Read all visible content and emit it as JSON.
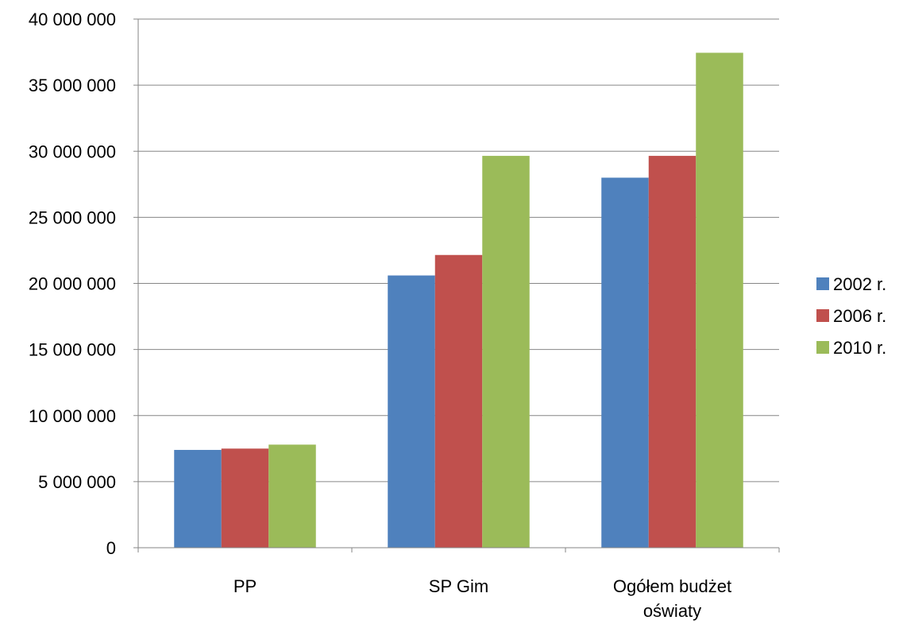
{
  "chart_data": {
    "type": "bar",
    "categories": [
      "PP",
      "SP Gim",
      "Ogółem budżet oświaty"
    ],
    "category_lines": [
      [
        "PP"
      ],
      [
        "SP Gim"
      ],
      [
        "Ogółem budżet",
        "oświaty"
      ]
    ],
    "series": [
      {
        "name": "2002 r.",
        "color": "#4F81BD",
        "values": [
          7400000,
          20600000,
          28000000
        ]
      },
      {
        "name": "2006 r.",
        "color": "#C0504D",
        "values": [
          7500000,
          22150000,
          29650000
        ]
      },
      {
        "name": "2010 r.",
        "color": "#9BBB59",
        "values": [
          7800000,
          29650000,
          37450000
        ]
      }
    ],
    "ylim": [
      0,
      40000000
    ],
    "ytick_step": 5000000,
    "ytick_labels": [
      "0",
      "5 000 000",
      "10 000 000",
      "15 000 000",
      "20 000 000",
      "25 000 000",
      "30 000 000",
      "35 000 000",
      "40 000 000"
    ],
    "grid": true,
    "legend_position": "right",
    "title": "",
    "xlabel": "",
    "ylabel": ""
  }
}
